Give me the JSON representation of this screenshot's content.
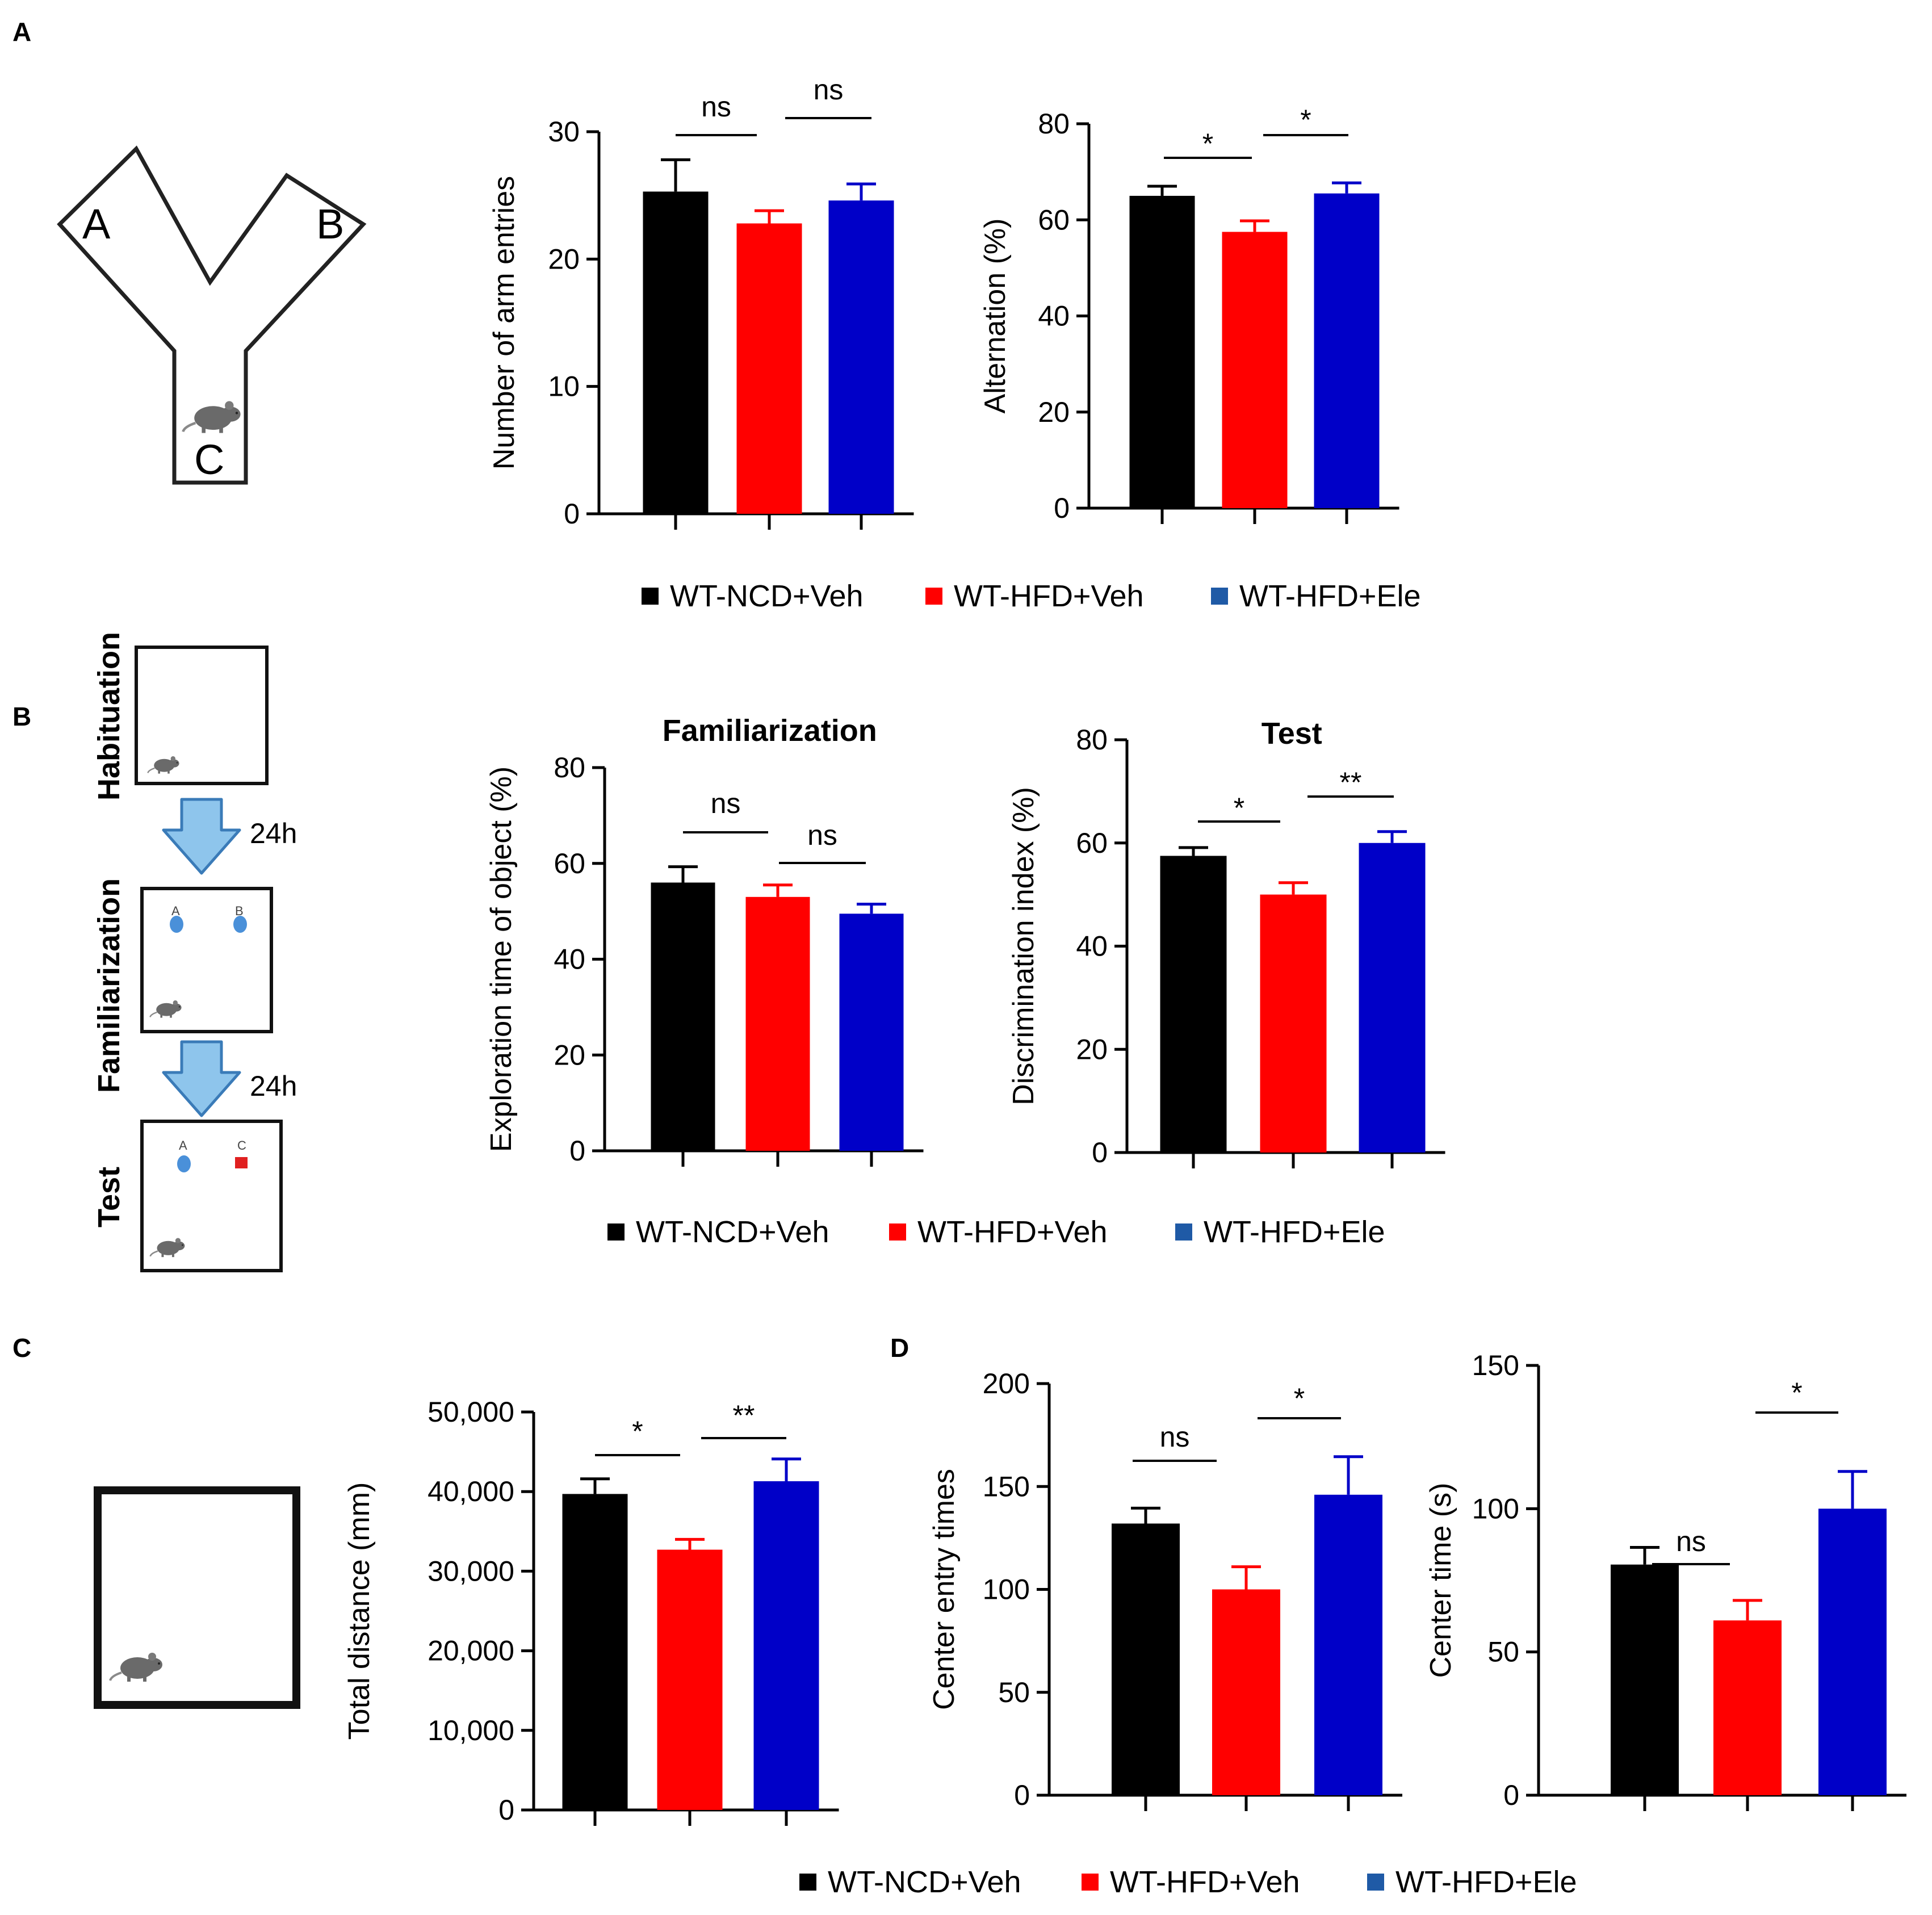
{
  "panels": {
    "a": "A",
    "b": "B",
    "c": "C",
    "d": "D"
  },
  "colors": {
    "ncd": "#000000",
    "hfd": "#ff0000",
    "ele": "#0000c8",
    "legend_ele": "#1f5aa6",
    "arrow": "#8ec5ec"
  },
  "ymaze": {
    "arm_a": "A",
    "arm_b": "B",
    "arm_c": "C"
  },
  "nor": {
    "stage_habituation": "Habituation",
    "stage_familiarization": "Familiarization",
    "stage_test": "Test",
    "interval_1": "24h",
    "interval_2": "24h",
    "obj_a1": "A",
    "obj_b1": "B",
    "obj_a2": "A",
    "obj_c2": "C"
  },
  "legend": {
    "ncd": "WT-NCD+Veh",
    "hfd": "WT-HFD+Veh",
    "ele": "WT-HFD+Ele"
  },
  "chart_data": [
    {
      "id": "a1",
      "type": "bar",
      "title": "",
      "ylabel": "Number of arm entries",
      "ylim": [
        0,
        30
      ],
      "yticks": [
        "0",
        "10",
        "20",
        "30"
      ],
      "categories": [
        "WT-NCD+Veh",
        "WT-HFD+Veh",
        "WT-HFD+Ele"
      ],
      "values": [
        25.3,
        22.8,
        24.6
      ],
      "errors": [
        2.5,
        1.0,
        1.3
      ],
      "significance": [
        {
          "from": 0,
          "to": 1,
          "label": "ns"
        },
        {
          "from": 1,
          "to": 2,
          "label": "ns"
        }
      ]
    },
    {
      "id": "a2",
      "type": "bar",
      "title": "",
      "ylabel": "Alternation (%)",
      "ylim": [
        0,
        80
      ],
      "yticks": [
        "0",
        "20",
        "40",
        "60",
        "80"
      ],
      "categories": [
        "WT-NCD+Veh",
        "WT-HFD+Veh",
        "WT-HFD+Ele"
      ],
      "values": [
        65,
        57.5,
        65.5
      ],
      "errors": [
        2.0,
        2.3,
        2.2
      ],
      "significance": [
        {
          "from": 0,
          "to": 1,
          "label": "*"
        },
        {
          "from": 1,
          "to": 2,
          "label": "*"
        }
      ]
    },
    {
      "id": "b1",
      "type": "bar",
      "title": "Familiarization",
      "ylabel": "Exploration time of object (%)",
      "ylim": [
        0,
        80
      ],
      "yticks": [
        "0",
        "20",
        "40",
        "60",
        "80"
      ],
      "categories": [
        "WT-NCD+Veh",
        "WT-HFD+Veh",
        "WT-HFD+Ele"
      ],
      "values": [
        56,
        53,
        49.5
      ],
      "errors": [
        3.3,
        2.5,
        2.0
      ],
      "significance": [
        {
          "from": 0,
          "to": 1,
          "label": "ns"
        },
        {
          "from": 1,
          "to": 2,
          "label": "ns"
        }
      ]
    },
    {
      "id": "b2",
      "type": "bar",
      "title": "Test",
      "ylabel": "Discrimination index (%)",
      "ylim": [
        0,
        80
      ],
      "yticks": [
        "0",
        "20",
        "40",
        "60",
        "80"
      ],
      "categories": [
        "WT-NCD+Veh",
        "WT-HFD+Veh",
        "WT-HFD+Ele"
      ],
      "values": [
        57.5,
        50,
        60
      ],
      "errors": [
        1.6,
        2.3,
        2.2
      ],
      "significance": [
        {
          "from": 0,
          "to": 1,
          "label": "*"
        },
        {
          "from": 1,
          "to": 2,
          "label": "**"
        }
      ]
    },
    {
      "id": "c1",
      "type": "bar",
      "title": "",
      "ylabel": "Total distance (mm)",
      "ylim": [
        0,
        50000
      ],
      "yticks": [
        "0",
        "10,000",
        "20,000",
        "30,000",
        "40,000",
        "50,000"
      ],
      "categories": [
        "WT-NCD+Veh",
        "WT-HFD+Veh",
        "WT-HFD+Ele"
      ],
      "values": [
        39700,
        32700,
        41300
      ],
      "errors": [
        1900,
        1300,
        2800
      ],
      "significance": [
        {
          "from": 0,
          "to": 1,
          "label": "*"
        },
        {
          "from": 1,
          "to": 2,
          "label": "**"
        }
      ]
    },
    {
      "id": "d1",
      "type": "bar",
      "title": "",
      "ylabel": "Center entry times",
      "ylim": [
        0,
        200
      ],
      "yticks": [
        "0",
        "50",
        "100",
        "150",
        "200"
      ],
      "categories": [
        "WT-NCD+Veh",
        "WT-HFD+Veh",
        "WT-HFD+Ele"
      ],
      "values": [
        132,
        100,
        146
      ],
      "errors": [
        7.5,
        11,
        18.5
      ],
      "significance": [
        {
          "from": 0,
          "to": 1,
          "label": "ns"
        },
        {
          "from": 1,
          "to": 2,
          "label": "*"
        }
      ]
    },
    {
      "id": "d2",
      "type": "bar",
      "title": "",
      "ylabel": "Center time (s)",
      "ylim": [
        0,
        150
      ],
      "yticks": [
        "0",
        "50",
        "100",
        "150"
      ],
      "categories": [
        "WT-NCD+Veh",
        "WT-HFD+Veh",
        "WT-HFD+Ele"
      ],
      "values": [
        80.5,
        61,
        100
      ],
      "errors": [
        6,
        7,
        13
      ],
      "significance": [
        {
          "from": 0,
          "to": 1,
          "label": "ns"
        },
        {
          "from": 1,
          "to": 2,
          "label": "*"
        }
      ]
    }
  ]
}
